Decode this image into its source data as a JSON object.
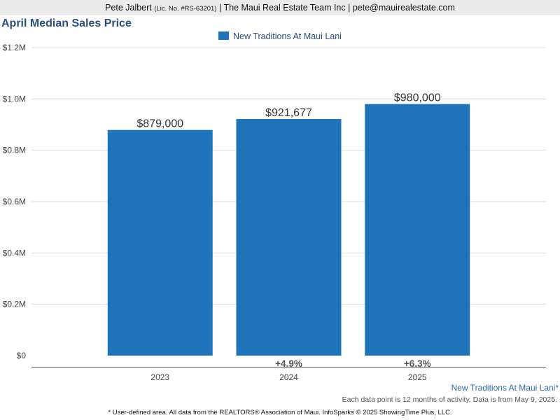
{
  "header": {
    "name": "Pete Jalbert",
    "license": "(Lic. No. #RS-63201)",
    "rest": "| The Maui Real Estate Team Inc | pete@mauirealestate.com"
  },
  "chart_data": {
    "type": "bar",
    "title": "April Median Sales Price",
    "categories": [
      "2023",
      "2024",
      "2025"
    ],
    "series": [
      {
        "name": "New Traditions At Maui Lani",
        "values": [
          879000,
          921677,
          980000
        ],
        "color": "#1f74b9"
      }
    ],
    "value_labels": [
      "$879,000",
      "$921,677",
      "$980,000"
    ],
    "change_labels": [
      "",
      "+4.9%",
      "+6.3%"
    ],
    "yticks": [
      0,
      200000,
      400000,
      600000,
      800000,
      1000000,
      1200000
    ],
    "ytick_labels": [
      "$0",
      "$0.2M",
      "$0.4M",
      "$0.6M",
      "$0.8M",
      "$1.0M",
      "$1.2M"
    ],
    "ylim": [
      0,
      1200000
    ],
    "grid": true,
    "legend": "top-center"
  },
  "footer": {
    "area_note": "New Traditions At Maui Lani*",
    "note1": "Each data point is 12 months of activity. Data is from May 9, 2025.",
    "note2": "* User-defined area. All data from the REALTORS® Association of Maui. InfoSparks © 2025 ShowingTime Plus, LLC."
  }
}
